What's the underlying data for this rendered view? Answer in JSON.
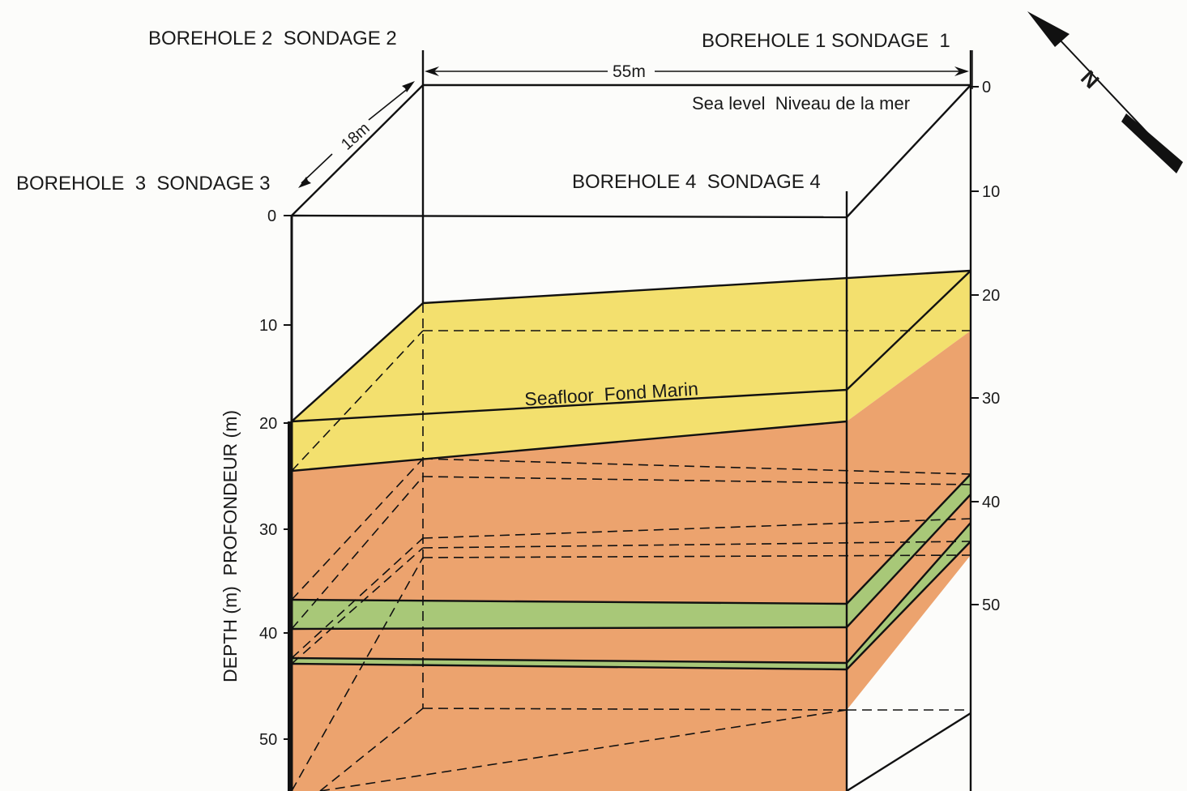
{
  "boreholes": {
    "bh1": "BOREHOLE 1 SONDAGE  1",
    "bh2": "BOREHOLE 2  SONDAGE 2",
    "bh3": "BOREHOLE  3  SONDAGE 3",
    "bh4": "BOREHOLE 4  SONDAGE 4"
  },
  "dimensions": {
    "width": "55m",
    "depth": "18m"
  },
  "labels": {
    "sea_level": "Sea level  Niveau de la mer",
    "seafloor": "Seafloor  Fond Marin",
    "y_axis": "DEPTH (m)  PROFONDEUR (m)"
  },
  "left_scale": [
    "0",
    "10",
    "20",
    "30",
    "40",
    "50"
  ],
  "right_scale": [
    "0",
    "10",
    "20",
    "30",
    "40",
    "50"
  ],
  "colors": {
    "water_sediment": "#f3e06e",
    "sediment": "#eca36e",
    "green_layer": "#a8c878",
    "line": "#111111"
  }
}
